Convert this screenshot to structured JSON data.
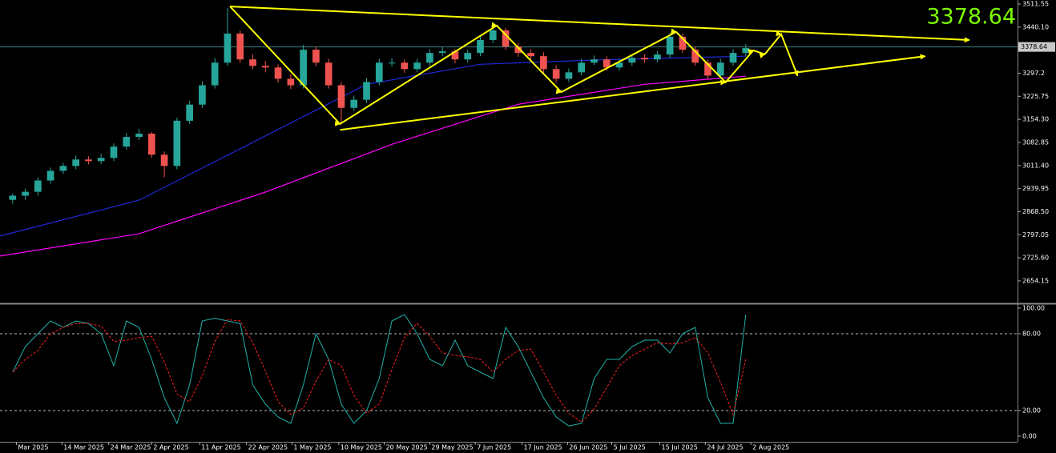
{
  "chart_data": [
    {
      "type": "candlestick",
      "xlim": [
        -1,
        79.5
      ],
      "ylim": [
        2587,
        3524
      ],
      "yticks": [
        3511.55,
        {
          "value": 3440.1,
          "label": "3440.10"
        },
        3297.2,
        3225.75,
        {
          "value": 3154.3,
          "label": "3154.30"
        },
        3082.85,
        {
          "value": 3011.4,
          "label": "3011.40"
        },
        2939.95,
        {
          "value": 2868.5,
          "label": "2868.50"
        },
        2797.05,
        {
          "value": 2725.6,
          "label": "2725.60"
        },
        2654.15
      ],
      "xticks": [
        {
          "value": 0.3,
          "label": "Mar 2025"
        },
        {
          "value": 3.9,
          "label": "14 Mar 2025"
        },
        {
          "value": 7.6,
          "label": "24 Mar 2025"
        },
        {
          "value": 11,
          "label": "2 Apr 2025"
        },
        {
          "value": 14.8,
          "label": "11 Apr 2025"
        },
        {
          "value": 18.5,
          "label": "22 Apr 2025"
        },
        {
          "value": 22.1,
          "label": "1 May 2025"
        },
        {
          "value": 25.8,
          "label": "10 May 2025"
        },
        {
          "value": 29.4,
          "label": "20 May 2025"
        },
        {
          "value": 33,
          "label": "29 May 2025"
        },
        {
          "value": 36.6,
          "label": "7 Jun 2025"
        },
        {
          "value": 40.3,
          "label": "17 Jun 2025"
        },
        {
          "value": 43.9,
          "label": "26 Jun 2025"
        },
        {
          "value": 47.4,
          "label": "5 Jul 2025"
        },
        {
          "value": 51.2,
          "label": "15 Jul 2025"
        },
        {
          "value": 54.8,
          "label": "24 Jul 2025"
        },
        {
          "value": 58.4,
          "label": "2 Aug 2025"
        }
      ],
      "last_price": 3378.64,
      "up_color": "#26a69a",
      "down_color": "#ef5350",
      "x": [
        0,
        1,
        2,
        3,
        4,
        5,
        6,
        7,
        8,
        9,
        10,
        11,
        12,
        13,
        14,
        15,
        16,
        17,
        18,
        19,
        20,
        21,
        22,
        23,
        24,
        25,
        26,
        27,
        28,
        29,
        30,
        31,
        32,
        33,
        34,
        35,
        36,
        37,
        38,
        39,
        40,
        41,
        42,
        43,
        44,
        45,
        46,
        47,
        48,
        49,
        50,
        51,
        52,
        53,
        54,
        55,
        56,
        57,
        58
      ],
      "open": [
        2905,
        2918,
        2930,
        2965,
        2995,
        3010,
        3030,
        3025,
        3035,
        3070,
        3100,
        3110,
        3045,
        3010,
        3150,
        3200,
        3260,
        3330,
        3420,
        3340,
        3320,
        3315,
        3280,
        3260,
        3370,
        3330,
        3260,
        3190,
        3215,
        3270,
        3330,
        3330,
        3310,
        3330,
        3360,
        3365,
        3340,
        3360,
        3400,
        3430,
        3380,
        3360,
        3350,
        3310,
        3280,
        3300,
        3330,
        3340,
        3315,
        3330,
        3345,
        3340,
        3355,
        3410,
        3370,
        3330,
        3290,
        3330,
        3360
      ],
      "high": [
        2925,
        2940,
        2975,
        3005,
        3020,
        3042,
        3040,
        3048,
        3080,
        3112,
        3125,
        3115,
        3055,
        3160,
        3212,
        3272,
        3345,
        3499,
        3430,
        3355,
        3335,
        3325,
        3295,
        3385,
        3380,
        3342,
        3270,
        3228,
        3282,
        3342,
        3345,
        3340,
        3342,
        3372,
        3378,
        3372,
        3370,
        3412,
        3445,
        3438,
        3392,
        3372,
        3362,
        3322,
        3312,
        3342,
        3352,
        3350,
        3340,
        3356,
        3356,
        3366,
        3422,
        3420,
        3380,
        3340,
        3342,
        3372,
        3388
      ],
      "low": [
        2893,
        2905,
        2918,
        2955,
        2985,
        3000,
        3015,
        3015,
        3025,
        3060,
        3090,
        3035,
        2975,
        3000,
        3140,
        3190,
        3250,
        3320,
        3330,
        3310,
        3300,
        3268,
        3248,
        3250,
        3318,
        3250,
        3140,
        3180,
        3205,
        3260,
        3318,
        3298,
        3300,
        3320,
        3350,
        3328,
        3330,
        3350,
        3390,
        3370,
        3348,
        3340,
        3298,
        3268,
        3270,
        3290,
        3322,
        3305,
        3305,
        3320,
        3330,
        3330,
        3345,
        3360,
        3320,
        3278,
        3280,
        3320,
        3350
      ],
      "close": [
        2918,
        2930,
        2965,
        2995,
        3010,
        3030,
        3025,
        3035,
        3070,
        3100,
        3110,
        3045,
        3010,
        3150,
        3200,
        3260,
        3330,
        3420,
        3340,
        3320,
        3315,
        3280,
        3260,
        3370,
        3330,
        3260,
        3190,
        3215,
        3270,
        3330,
        3330,
        3310,
        3330,
        3360,
        3365,
        3340,
        3360,
        3400,
        3430,
        3380,
        3360,
        3350,
        3310,
        3280,
        3300,
        3330,
        3340,
        3315,
        3330,
        3345,
        3340,
        3355,
        3410,
        3370,
        3330,
        3290,
        3330,
        3360,
        3375
      ],
      "lines": [
        {
          "color": "#ff00ff",
          "x": [
            -1,
            10,
            20,
            30,
            40,
            50,
            58
          ],
          "values": [
            2731,
            2800,
            2929,
            3077,
            3201,
            3263,
            3288
          ]
        },
        {
          "color": "#1e2ad8",
          "x": [
            -1,
            10,
            20,
            28,
            37,
            46,
            58
          ],
          "values": [
            2793,
            2904,
            3103,
            3263,
            3325,
            3338,
            3350
          ]
        }
      ],
      "drawings": [
        {
          "color": "#ffff00",
          "x": [
            17.2,
            75.7
          ],
          "values": [
            3504,
            3400
          ]
        },
        {
          "color": "#ffff00",
          "x": [
            25.9,
            72.2
          ],
          "values": [
            3122,
            3350
          ]
        },
        {
          "color": "#ffff00",
          "x": [
            17.2,
            25.9,
            38.3,
            43.4,
            52.5,
            56.4,
            58.6,
            59.5,
            60.8,
            62.1
          ],
          "values": [
            3504,
            3140,
            3445,
            3239,
            3425,
            3269,
            3368,
            3356,
            3418,
            3289
          ]
        }
      ]
    },
    {
      "type": "line",
      "xlim": [
        -1,
        79.5
      ],
      "ylim": [
        -4.4,
        103.1
      ],
      "yticks": [
        {
          "value": 100,
          "label": "100.00"
        },
        {
          "value": 80,
          "label": "80.00"
        },
        {
          "value": 20,
          "label": "20.00"
        },
        {
          "value": 0,
          "label": "0.00"
        }
      ],
      "levels": [
        80,
        20
      ],
      "x": [
        0,
        1,
        2,
        3,
        4,
        5,
        6,
        7,
        8,
        9,
        10,
        11,
        12,
        13,
        14,
        15,
        16,
        17,
        18,
        19,
        20,
        21,
        22,
        23,
        24,
        25,
        26,
        27,
        28,
        29,
        30,
        31,
        32,
        33,
        34,
        35,
        36,
        37,
        38,
        39,
        40,
        41,
        42,
        43,
        44,
        45,
        46,
        47,
        48,
        49,
        50,
        51,
        52,
        53,
        54,
        55,
        56,
        57,
        58
      ],
      "series": [
        {
          "color": "#20b2aa",
          "dashed": false,
          "values": [
            50,
            70,
            80,
            90,
            85,
            90,
            88,
            80,
            55,
            90,
            85,
            60,
            30,
            10,
            40,
            90,
            92,
            90,
            88,
            40,
            25,
            15,
            10,
            40,
            80,
            60,
            25,
            10,
            20,
            45,
            90,
            95,
            80,
            60,
            55,
            75,
            55,
            50,
            45,
            85,
            70,
            50,
            30,
            15,
            8,
            10,
            45,
            60,
            60,
            70,
            75,
            75,
            65,
            80,
            85,
            30,
            10,
            10,
            95
          ]
        },
        {
          "color": "#ff2020",
          "dashed": true,
          "values": [
            50,
            60,
            67,
            80,
            85,
            88,
            88,
            86,
            74,
            75,
            77,
            78,
            58,
            33,
            27,
            47,
            74,
            91,
            90,
            73,
            51,
            27,
            17,
            22,
            43,
            60,
            55,
            32,
            18,
            25,
            52,
            77,
            88,
            78,
            65,
            63,
            62,
            60,
            50,
            60,
            67,
            68,
            50,
            32,
            18,
            11,
            21,
            38,
            55,
            63,
            68,
            73,
            72,
            73,
            77,
            65,
            42,
            17,
            60
          ]
        }
      ]
    }
  ]
}
